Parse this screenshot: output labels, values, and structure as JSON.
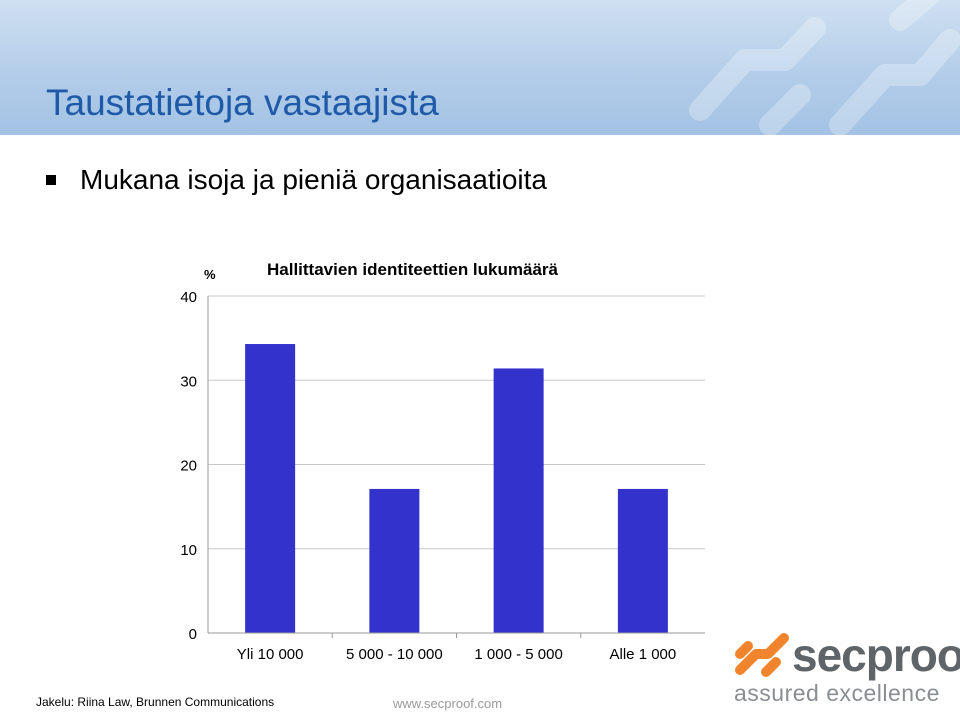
{
  "slide": {
    "title": "Taustatietoja vastaajista",
    "bullet": "Mukana isoja ja pieniä organisaatioita"
  },
  "chart_data": {
    "type": "bar",
    "title": "Hallittavien identiteettien lukumäärä",
    "ylabel": "%",
    "xlabel": "",
    "categories": [
      "Yli 10 000",
      "5 000 - 10 000",
      "1 000 - 5 000",
      "Alle 1 000"
    ],
    "values": [
      34.3,
      17.1,
      31.4,
      17.1
    ],
    "ylim": [
      0,
      40
    ],
    "yticks": [
      0,
      10,
      20,
      30,
      40
    ],
    "grid": true,
    "bar_color": "#3333cc"
  },
  "footer": {
    "source": "Jakelu: Riina Law, Brunnen Communications",
    "url": "www.secproof.com"
  },
  "logo": {
    "name": "secproof",
    "tagline": "assured excellence",
    "colors": {
      "orange": "#f0852d",
      "gray": "#5f6468"
    }
  }
}
